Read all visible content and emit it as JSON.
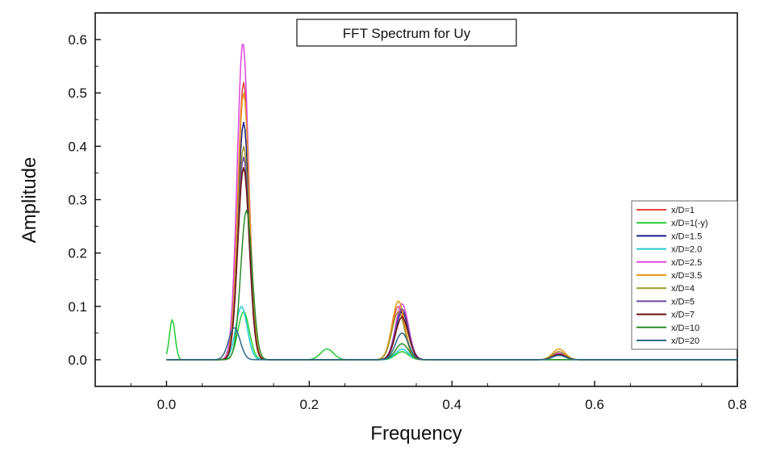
{
  "chart_data": {
    "type": "line",
    "title": "FFT Spectrum for Uy",
    "xlabel": "Frequency",
    "ylabel": "Amplitude",
    "xlim": [
      -0.1,
      0.8
    ],
    "ylim": [
      -0.05,
      0.65
    ],
    "xticks": [
      0.0,
      0.2,
      0.4,
      0.6,
      0.8
    ],
    "xtick_labels": [
      "0.0",
      "0.2",
      "0.4",
      "0.6",
      "0.8"
    ],
    "yticks": [
      0.0,
      0.1,
      0.2,
      0.3,
      0.4,
      0.5,
      0.6
    ],
    "ytick_labels": [
      "0.0",
      "0.1",
      "0.2",
      "0.3",
      "0.4",
      "0.5",
      "0.6"
    ],
    "grid": false,
    "legend_position": "right",
    "series": [
      {
        "name": "x/D=1",
        "color": "#e8453c",
        "peaks": [
          [
            0.108,
            0.52
          ],
          [
            0.325,
            0.1
          ],
          [
            0.55,
            0.015
          ]
        ]
      },
      {
        "name": "x/D=1(-y)",
        "color": "#22cc33",
        "peaks": [
          [
            0.008,
            0.075
          ],
          [
            0.108,
            0.09
          ],
          [
            0.225,
            0.02
          ],
          [
            0.33,
            0.015
          ]
        ]
      },
      {
        "name": "x/D=1.5",
        "color": "#1a1a8c",
        "peaks": [
          [
            0.108,
            0.445
          ],
          [
            0.33,
            0.09
          ],
          [
            0.55,
            0.01
          ]
        ]
      },
      {
        "name": "x/D=2.0",
        "color": "#22cccc",
        "peaks": [
          [
            0.105,
            0.1
          ],
          [
            0.33,
            0.02
          ]
        ]
      },
      {
        "name": "x/D=2.5",
        "color": "#dd44dd",
        "peaks": [
          [
            0.107,
            0.595
          ],
          [
            0.33,
            0.105
          ],
          [
            0.55,
            0.012
          ]
        ]
      },
      {
        "name": "x/D=3.5",
        "color": "#e69a1a",
        "peaks": [
          [
            0.108,
            0.5
          ],
          [
            0.325,
            0.11
          ],
          [
            0.55,
            0.02
          ]
        ]
      },
      {
        "name": "x/D=4",
        "color": "#9a9a2a",
        "peaks": [
          [
            0.108,
            0.4
          ],
          [
            0.325,
            0.09
          ],
          [
            0.55,
            0.015
          ]
        ]
      },
      {
        "name": "x/D=5",
        "color": "#6a4a9a",
        "peaks": [
          [
            0.108,
            0.38
          ],
          [
            0.33,
            0.095
          ],
          [
            0.55,
            0.01
          ]
        ]
      },
      {
        "name": "x/D=7",
        "color": "#6a1010",
        "peaks": [
          [
            0.108,
            0.36
          ],
          [
            0.33,
            0.08
          ],
          [
            0.55,
            0.01
          ]
        ]
      },
      {
        "name": "x/D=10",
        "color": "#2a8a2a",
        "peaks": [
          [
            0.112,
            0.28
          ],
          [
            0.33,
            0.03
          ]
        ]
      },
      {
        "name": "x/D=20",
        "color": "#2a6a8a",
        "peaks": [
          [
            0.095,
            0.06
          ],
          [
            0.33,
            0.05
          ],
          [
            0.55,
            0.008
          ]
        ]
      }
    ]
  }
}
